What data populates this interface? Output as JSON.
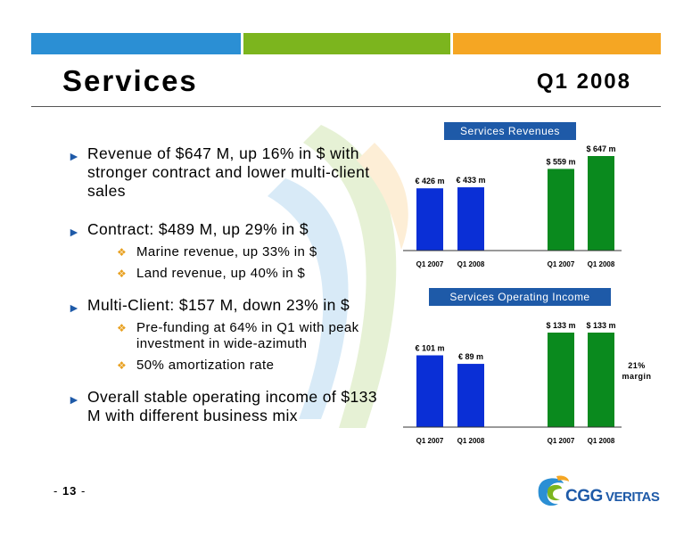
{
  "header": {
    "title": "Services",
    "period": "Q1 2008"
  },
  "colors": {
    "blue": "#2b8fd4",
    "green": "#7cb51e",
    "orange": "#f5a623",
    "bar_blue": "#0a2fd6",
    "bar_green": "#0a8a1e",
    "label_bg": "#1e5aa8"
  },
  "bullets": [
    {
      "text": "Revenue of $647 M, up 16% in $ with stronger contract and lower multi-client sales",
      "sub": []
    },
    {
      "text": "Contract: $489 M, up 29% in $",
      "sub": [
        "Marine revenue, up 33% in $",
        "Land revenue, up 40% in $"
      ]
    },
    {
      "text": "Multi-Client: $157 M, down 23% in $",
      "sub": [
        "Pre-funding at 64% in Q1 with peak investment in wide-azimuth",
        "50% amortization rate"
      ]
    },
    {
      "text": "Overall stable operating income of $133 M with different business mix",
      "sub": []
    }
  ],
  "chart_data": [
    {
      "type": "bar",
      "title": "Services Revenues",
      "categories": [
        "Q1 2007",
        "Q1 2008",
        "Q1 2007",
        "Q1 2008"
      ],
      "values": [
        426,
        433,
        559,
        647
      ],
      "data_labels": [
        "€ 426 m",
        "€ 433 m",
        "$ 559 m",
        "$ 647 m"
      ],
      "currency": [
        "EUR",
        "EUR",
        "USD",
        "USD"
      ],
      "ylim": [
        0,
        700
      ]
    },
    {
      "type": "bar",
      "title": "Services Operating Income",
      "categories": [
        "Q1 2007",
        "Q1 2008",
        "Q1 2007",
        "Q1 2008"
      ],
      "values": [
        101,
        89,
        133,
        133
      ],
      "data_labels": [
        "€ 101 m",
        "€ 89 m",
        "$ 133 m",
        "$ 133 m"
      ],
      "currency": [
        "EUR",
        "EUR",
        "USD",
        "USD"
      ],
      "ylim": [
        0,
        140
      ],
      "note": "21% margin"
    }
  ],
  "footer": {
    "page_prefix": "- ",
    "page_number": "13",
    "page_suffix": " -",
    "logo_text_1": "CGG",
    "logo_text_2": "VERITAS"
  }
}
